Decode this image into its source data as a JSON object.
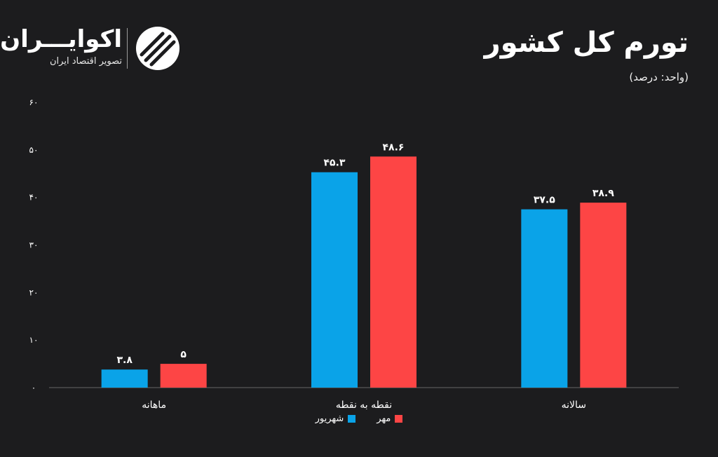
{
  "header": {
    "title": "تورم کل کشور",
    "unit": "(واحد: درصد)"
  },
  "logo": {
    "name": "اکوایـــران",
    "tagline": "تصویر اقتصاد ایران"
  },
  "colors": {
    "background": "#1c1c1e",
    "shahrivar": "#0aa3e8",
    "mehr": "#fd4545",
    "axis": "#666666",
    "text": "#ffffff"
  },
  "chart_data": {
    "type": "bar",
    "categories": [
      "ماهانه",
      "نقطه به نقطه",
      "سالانه"
    ],
    "series": [
      {
        "name": "شهریور",
        "values": [
          3.8,
          45.3,
          37.5
        ],
        "labels": [
          "۳.۸",
          "۴۵.۳",
          "۳۷.۵"
        ],
        "color": "#0aa3e8"
      },
      {
        "name": "مهر",
        "values": [
          5,
          48.6,
          38.9
        ],
        "labels": [
          "۵",
          "۴۸.۶",
          "۳۸.۹"
        ],
        "color": "#fd4545"
      }
    ],
    "yticks": [
      0,
      10,
      20,
      30,
      40,
      50,
      60
    ],
    "ytick_labels": [
      "۰",
      "۱۰",
      "۲۰",
      "۳۰",
      "۴۰",
      "۵۰",
      "۶۰"
    ],
    "ylim": [
      0,
      60
    ],
    "grid": false,
    "legend_position": "bottom-center"
  }
}
